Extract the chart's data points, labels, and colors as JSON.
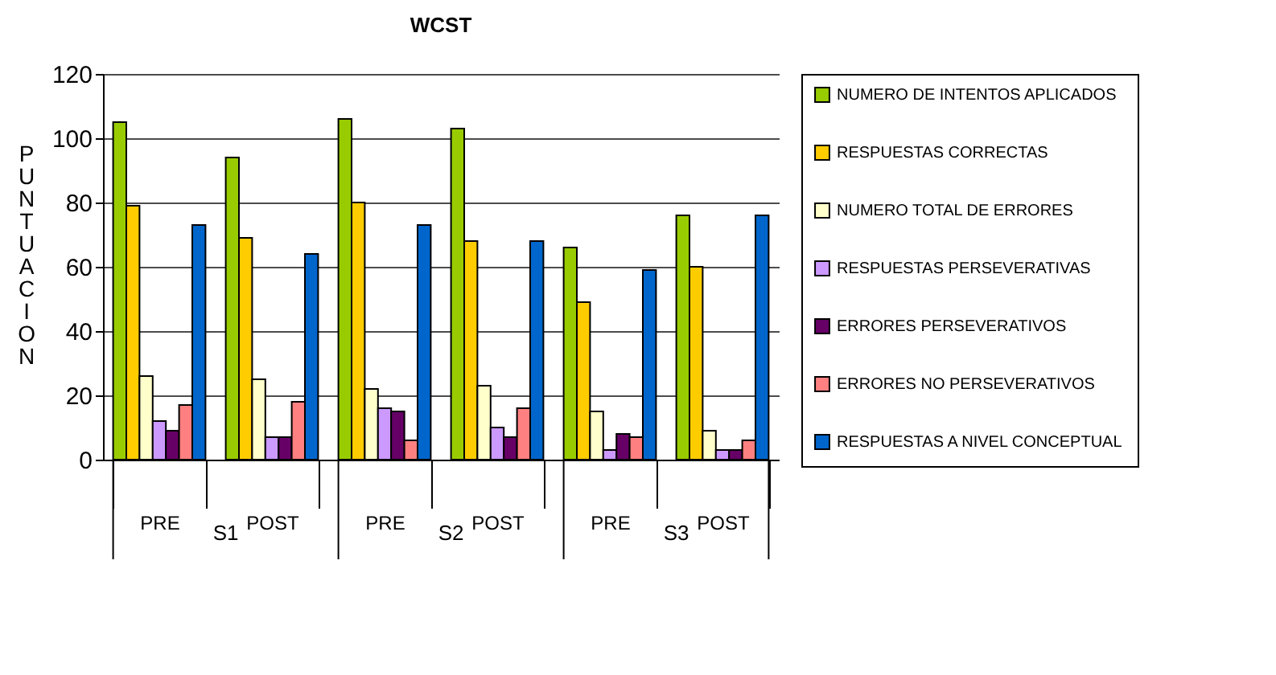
{
  "chart_data": {
    "type": "bar",
    "title": "WCST",
    "ylabel": "PUNTUACION",
    "categories": [
      "PRE",
      "POST",
      "PRE",
      "POST",
      "PRE",
      "POST"
    ],
    "annotations": [
      "S1",
      "S2",
      "S3"
    ],
    "series": [
      {
        "name": "NUMERO DE INTENTOS APLICADOS",
        "color": "#99cc00",
        "values": [
          105,
          94,
          106,
          103,
          66,
          76
        ]
      },
      {
        "name": "RESPUESTAS CORRECTAS",
        "color": "#ffcc00",
        "values": [
          79,
          69,
          80,
          68,
          49,
          60
        ]
      },
      {
        "name": "NUMERO TOTAL DE ERRORES",
        "color": "#ffffcc",
        "values": [
          26,
          25,
          22,
          23,
          15,
          9
        ]
      },
      {
        "name": "RESPUESTAS PERSEVERATIVAS",
        "color": "#cc99ff",
        "values": [
          12,
          7,
          16,
          10,
          3,
          3
        ]
      },
      {
        "name": "ERRORES PERSEVERATIVOS",
        "color": "#660066",
        "values": [
          9,
          7,
          15,
          7,
          8,
          3
        ]
      },
      {
        "name": "ERRORES NO PERSEVERATIVOS",
        "color": "#ff8080",
        "values": [
          17,
          18,
          6,
          16,
          7,
          6
        ]
      },
      {
        "name": "RESPUESTAS A NIVEL CONCEPTUAL",
        "color": "#0066cc",
        "values": [
          73,
          64,
          73,
          68,
          59,
          76
        ]
      }
    ],
    "ylim": [
      0,
      120
    ],
    "yticks": [
      0,
      20,
      40,
      60,
      80,
      100,
      120
    ],
    "grid": "y",
    "legend": "right"
  }
}
